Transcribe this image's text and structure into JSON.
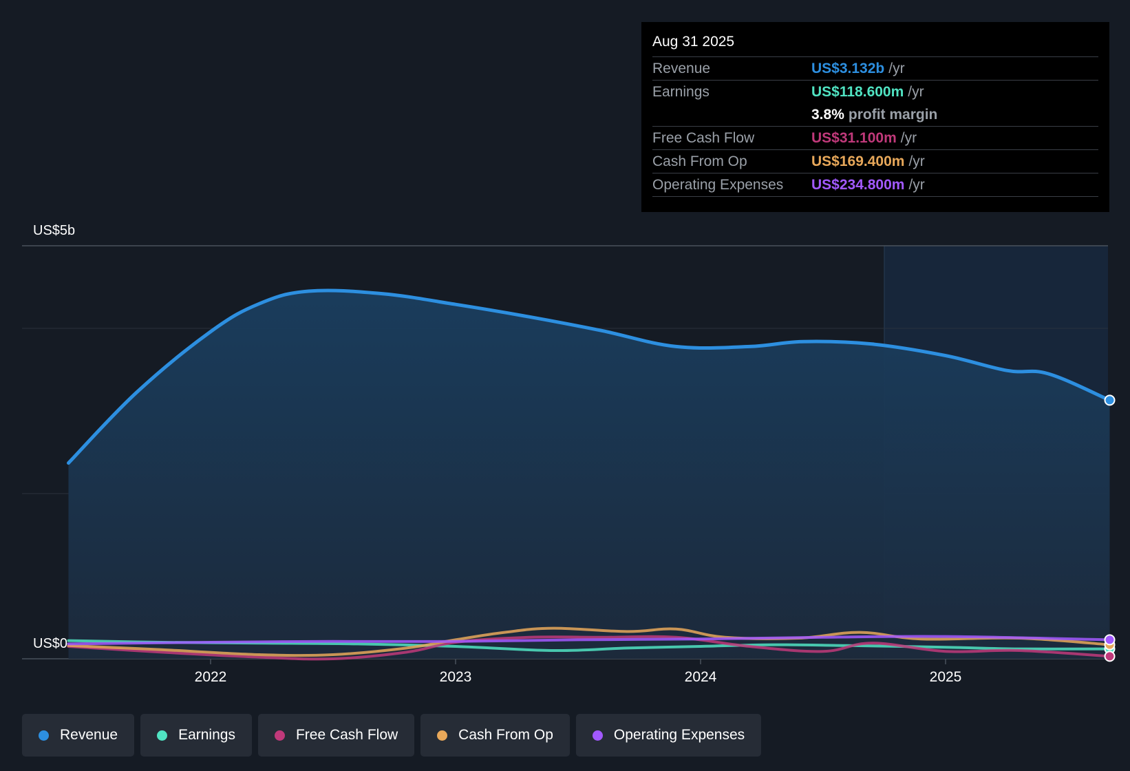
{
  "chart_data": {
    "type": "line",
    "title": "",
    "x_ticks": [
      "2022",
      "2023",
      "2024",
      "2025"
    ],
    "y_labels": {
      "top": "US$5b",
      "bottom": "US$0"
    },
    "ylim": [
      0,
      5
    ],
    "y_unit": "US$ billions",
    "past_divider_year": 2024.75,
    "series": [
      {
        "name": "Revenue",
        "color": "#2d8fe0",
        "x": [
          2021.42,
          2021.7,
          2022.0,
          2022.2,
          2022.4,
          2022.7,
          2023.0,
          2023.3,
          2023.6,
          2023.9,
          2024.2,
          2024.42,
          2024.7,
          2025.0,
          2025.25,
          2025.42,
          2025.67
        ],
        "values": [
          2.37,
          3.23,
          3.96,
          4.3,
          4.45,
          4.42,
          4.29,
          4.14,
          3.97,
          3.78,
          3.78,
          3.84,
          3.81,
          3.67,
          3.49,
          3.45,
          3.13
        ]
      },
      {
        "name": "Earnings",
        "color": "#50e3c2",
        "x": [
          2021.42,
          2021.8,
          2022.2,
          2022.6,
          2023.0,
          2023.4,
          2023.7,
          2024.0,
          2024.3,
          2024.6,
          2025.0,
          2025.3,
          2025.67
        ],
        "values": [
          0.22,
          0.2,
          0.19,
          0.18,
          0.15,
          0.1,
          0.13,
          0.15,
          0.17,
          0.16,
          0.14,
          0.12,
          0.12
        ]
      },
      {
        "name": "Free Cash Flow",
        "color": "#c0397a",
        "x": [
          2021.42,
          2021.8,
          2022.2,
          2022.5,
          2022.8,
          2023.0,
          2023.3,
          2023.6,
          2023.9,
          2024.2,
          2024.5,
          2024.7,
          2025.0,
          2025.3,
          2025.67
        ],
        "values": [
          0.15,
          0.08,
          0.02,
          0.0,
          0.08,
          0.2,
          0.26,
          0.26,
          0.26,
          0.15,
          0.09,
          0.19,
          0.09,
          0.1,
          0.03
        ]
      },
      {
        "name": "Cash From Op",
        "color": "#e8a85a",
        "x": [
          2021.42,
          2021.8,
          2022.2,
          2022.5,
          2022.8,
          2023.0,
          2023.2,
          2023.4,
          2023.7,
          2023.9,
          2024.1,
          2024.4,
          2024.65,
          2024.9,
          2025.3,
          2025.67
        ],
        "values": [
          0.16,
          0.11,
          0.05,
          0.05,
          0.13,
          0.23,
          0.32,
          0.37,
          0.33,
          0.36,
          0.26,
          0.25,
          0.32,
          0.24,
          0.25,
          0.17
        ]
      },
      {
        "name": "Operating Expenses",
        "color": "#a259ff",
        "x": [
          2021.42,
          2022.0,
          2022.5,
          2023.0,
          2023.5,
          2024.0,
          2024.5,
          2025.0,
          2025.67
        ],
        "values": [
          0.18,
          0.2,
          0.21,
          0.21,
          0.23,
          0.24,
          0.26,
          0.27,
          0.23
        ]
      }
    ]
  },
  "tooltip": {
    "date": "Aug 31 2025",
    "rows": [
      {
        "label": "Revenue",
        "value": "US$3.132b",
        "unit": "/yr",
        "color": "#2d8fe0"
      },
      {
        "label": "Earnings",
        "value": "US$118.600m",
        "unit": "/yr",
        "color": "#50e3c2"
      },
      {
        "label": "Free Cash Flow",
        "value": "US$31.100m",
        "unit": "/yr",
        "color": "#c0397a"
      },
      {
        "label": "Cash From Op",
        "value": "US$169.400m",
        "unit": "/yr",
        "color": "#e8a85a"
      },
      {
        "label": "Operating Expenses",
        "value": "US$234.800m",
        "unit": "/yr",
        "color": "#a259ff"
      }
    ],
    "margin": {
      "value": "3.8%",
      "text": "profit margin"
    }
  },
  "legend": [
    {
      "label": "Revenue",
      "color": "#2d8fe0"
    },
    {
      "label": "Earnings",
      "color": "#50e3c2"
    },
    {
      "label": "Free Cash Flow",
      "color": "#c0397a"
    },
    {
      "label": "Cash From Op",
      "color": "#e8a85a"
    },
    {
      "label": "Operating Expenses",
      "color": "#a259ff"
    }
  ]
}
